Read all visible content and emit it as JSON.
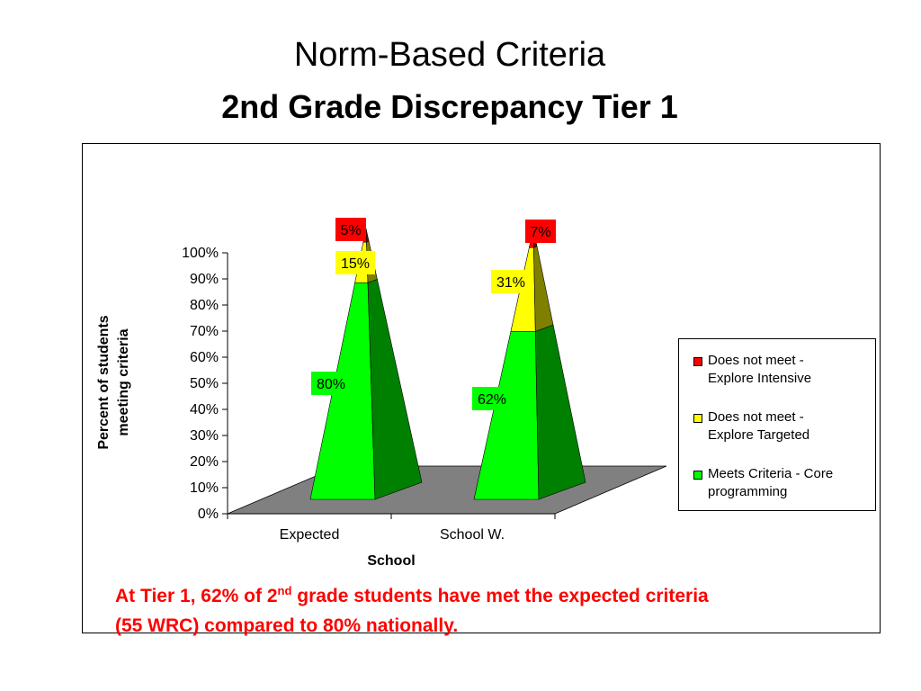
{
  "slide": {
    "title_line1": "Norm-Based Criteria",
    "title_line2": "2nd Grade Discrepancy Tier 1"
  },
  "annotation": {
    "part1": "At Tier 1, 62% of 2",
    "sup": "nd",
    "part2": " grade students have met the expected criteria",
    "line2": "(55 WRC) compared to 80% nationally."
  },
  "chart_data": {
    "type": "bar",
    "style": "3d-pyramid-stacked-100",
    "categories": [
      "Expected",
      "School W."
    ],
    "series": [
      {
        "name": "Meets Criteria - Core programming",
        "values": [
          80,
          62
        ],
        "labels": [
          "80%",
          "62%"
        ],
        "color": "#00ff00",
        "shade": "#008000"
      },
      {
        "name": "Does not meet - Explore Targeted",
        "values": [
          15,
          31
        ],
        "labels": [
          "15%",
          "31%"
        ],
        "color": "#ffff00",
        "shade": "#808000"
      },
      {
        "name": "Does not meet - Explore Intensive",
        "values": [
          5,
          7
        ],
        "labels": [
          "5%",
          "7%"
        ],
        "color": "#ff0000",
        "shade": "#800000"
      }
    ],
    "xlabel": "School",
    "ylabel": "Percent of students meeting criteria",
    "ylim": [
      0,
      100
    ],
    "yticks": [
      "0%",
      "10%",
      "20%",
      "30%",
      "40%",
      "50%",
      "60%",
      "70%",
      "80%",
      "90%",
      "100%"
    ],
    "legend_position": "right",
    "grid": false
  },
  "legend": {
    "items": [
      {
        "label_line1": "Does not meet -",
        "label_line2": "Explore Intensive",
        "color": "#ff0000"
      },
      {
        "label_line1": "Does not meet -",
        "label_line2": "Explore Targeted",
        "color": "#ffff00"
      },
      {
        "label_line1": "Meets Criteria - Core",
        "label_line2": "programming",
        "color": "#00ff00"
      }
    ]
  }
}
